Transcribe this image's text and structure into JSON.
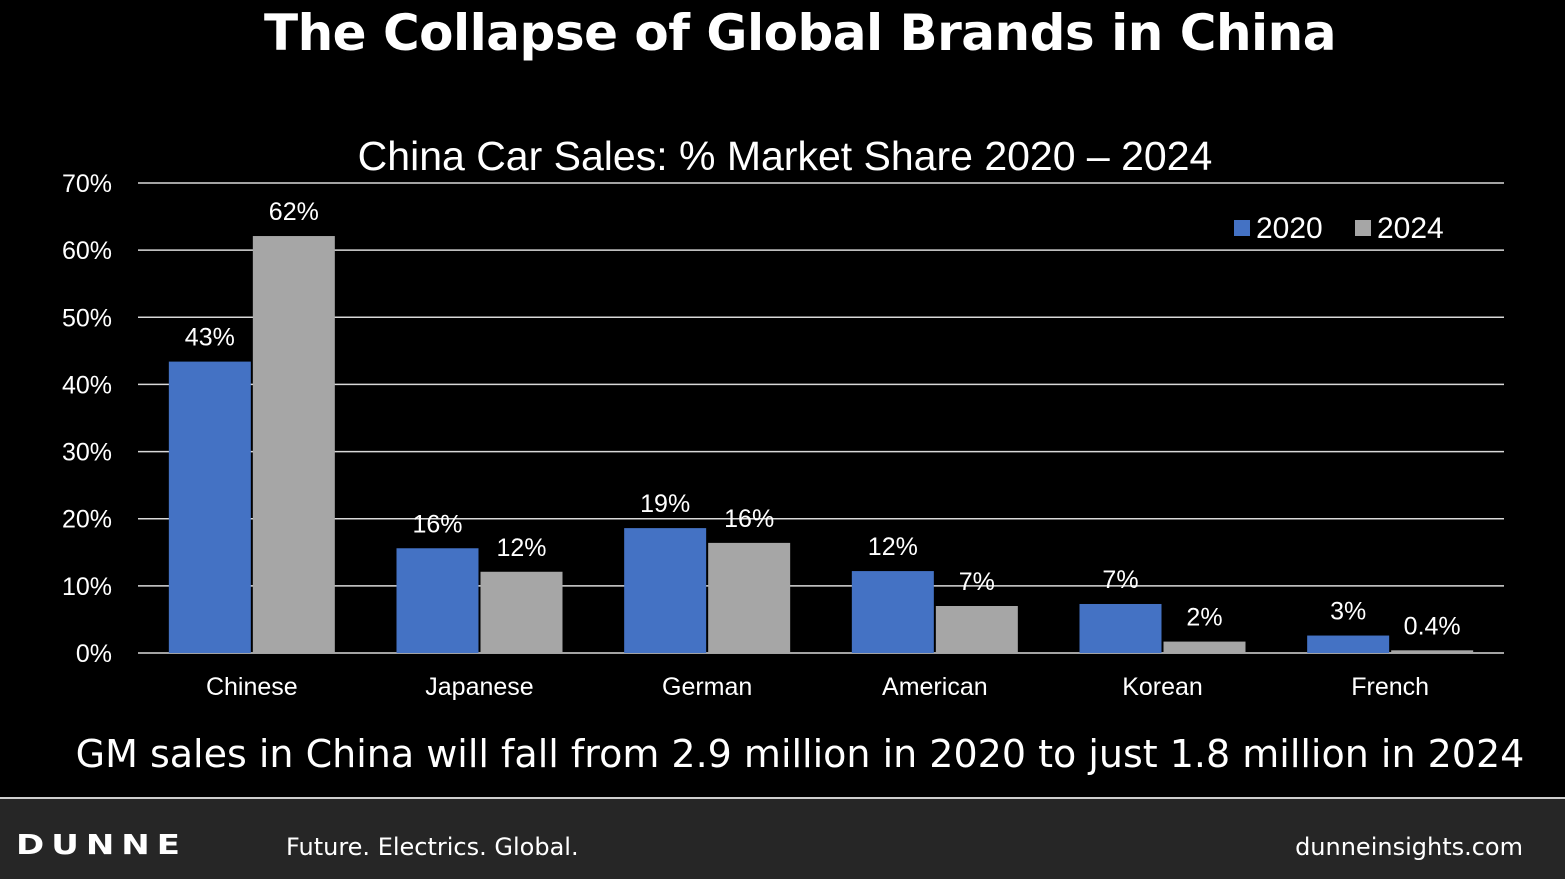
{
  "header": {
    "title": "The Collapse of Global Brands in China"
  },
  "chart_data": {
    "type": "bar",
    "title": "China Car Sales: % Market Share 2020 – 2024",
    "categories": [
      "Chinese",
      "Japanese",
      "German",
      "American",
      "Korean",
      "French"
    ],
    "series": [
      {
        "name": "2020",
        "color": "#4472C4",
        "values": [
          43.4,
          15.6,
          18.6,
          12.2,
          7.3,
          2.6
        ],
        "labels": [
          "43%",
          "16%",
          "19%",
          "12%",
          "7%",
          "3%"
        ]
      },
      {
        "name": "2024",
        "color": "#A6A6A6",
        "values": [
          62.1,
          12.1,
          16.4,
          7.0,
          1.7,
          0.4
        ],
        "labels": [
          "62%",
          "12%",
          "16%",
          "7%",
          "2%",
          "0.4%"
        ]
      }
    ],
    "ylim": [
      0,
      70
    ],
    "yticks": [
      0,
      10,
      20,
      30,
      40,
      50,
      60,
      70
    ],
    "ytick_labels": [
      "0%",
      "10%",
      "20%",
      "30%",
      "40%",
      "50%",
      "60%",
      "70%"
    ],
    "grid": true,
    "legend": "top-right"
  },
  "caption": "GM sales in China will fall from 2.9 million in 2020 to just 1.8 million in 2024",
  "footer": {
    "logo": "DUNNE",
    "tagline": "Future. Electrics. Global.",
    "website": "dunneinsights.com"
  }
}
